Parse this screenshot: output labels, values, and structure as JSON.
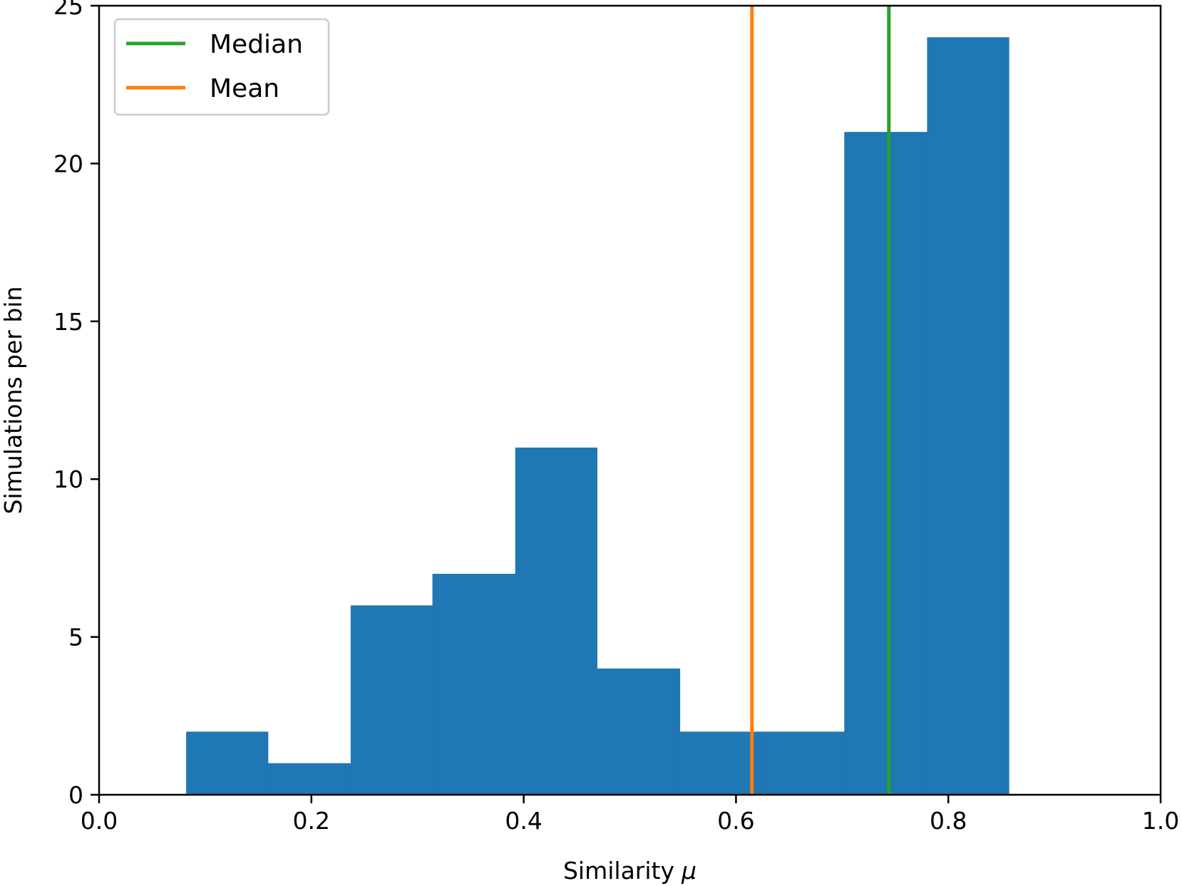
{
  "chart_data": {
    "type": "bar",
    "title": "",
    "xlabel": "Similarity",
    "xlabel_symbol": "μ",
    "ylabel": "Simulations per bin",
    "xlim": [
      0.0,
      1.0
    ],
    "ylim": [
      0,
      25
    ],
    "x_ticks": [
      "0.0",
      "0.2",
      "0.4",
      "0.6",
      "0.8",
      "1.0"
    ],
    "y_ticks": [
      "0",
      "5",
      "10",
      "15",
      "20",
      "25"
    ],
    "grid": false,
    "bar_color": "#1f77b4",
    "bins": [
      {
        "start": 0.082,
        "end": 0.159,
        "count": 2
      },
      {
        "start": 0.159,
        "end": 0.237,
        "count": 1
      },
      {
        "start": 0.237,
        "end": 0.314,
        "count": 6
      },
      {
        "start": 0.314,
        "end": 0.392,
        "count": 7
      },
      {
        "start": 0.392,
        "end": 0.469,
        "count": 11
      },
      {
        "start": 0.469,
        "end": 0.547,
        "count": 4
      },
      {
        "start": 0.547,
        "end": 0.625,
        "count": 2
      },
      {
        "start": 0.625,
        "end": 0.702,
        "count": 2
      },
      {
        "start": 0.702,
        "end": 0.78,
        "count": 21
      },
      {
        "start": 0.78,
        "end": 0.857,
        "count": 24
      }
    ],
    "reference_lines": [
      {
        "name": "Median",
        "x": 0.744,
        "color": "#2ca02c"
      },
      {
        "name": "Mean",
        "x": 0.615,
        "color": "#ff7f0e"
      }
    ],
    "legend": {
      "position": "top-left",
      "entries": [
        {
          "label": "Median",
          "color": "#2ca02c"
        },
        {
          "label": "Mean",
          "color": "#ff7f0e"
        }
      ]
    }
  }
}
